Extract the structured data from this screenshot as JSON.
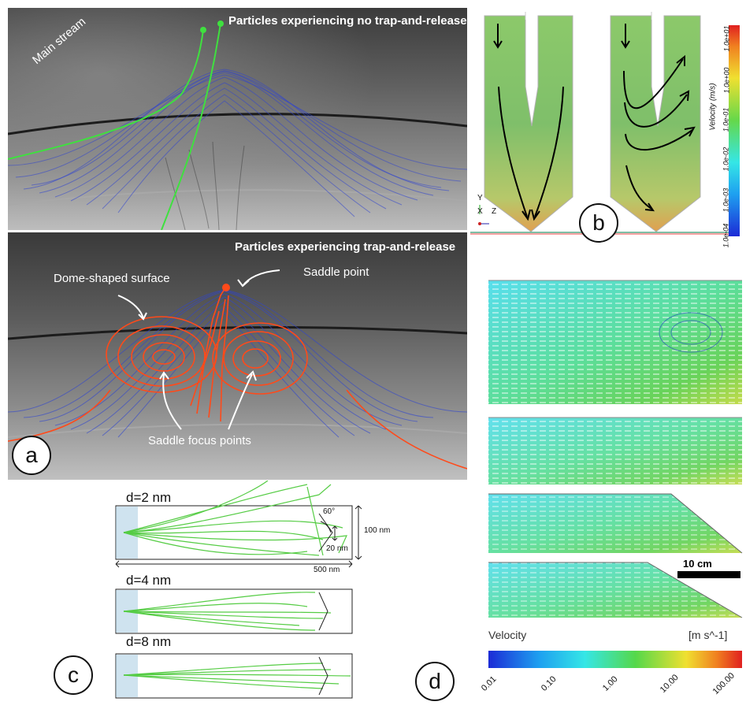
{
  "panel_a": {
    "top_title": "Particles experiencing no trap-and-release",
    "main_stream": "Main stream",
    "bottom_title": "Particles experiencing trap-and-release",
    "dome_label": "Dome-shaped surface",
    "saddle_point": "Saddle point",
    "saddle_focus": "Saddle focus points",
    "letter": "a"
  },
  "panel_b": {
    "letter": "b",
    "axis_y": "Y",
    "axis_x": "X",
    "axis_z": "Z",
    "colorbar_label": "Velocity (m/s)",
    "colorbar_ticks": [
      "1.0e+01",
      "1.0e+00",
      "1.0e-01",
      "1.0e-02",
      "1.0e-03",
      "1.0e-04"
    ]
  },
  "panel_c": {
    "letter": "c",
    "d2": "d=2 nm",
    "d4": "d=4 nm",
    "d8": "d=8 nm",
    "angle": "60°",
    "height": "100 nm",
    "gap": "20 nm",
    "length": "500 nm"
  },
  "panel_d": {
    "letter": "d",
    "scale": "10 cm",
    "velocity": "Velocity",
    "units": "[m s^-1]",
    "ticks": [
      "0.01",
      "0.10",
      "1.00",
      "10.00",
      "100.00"
    ]
  }
}
